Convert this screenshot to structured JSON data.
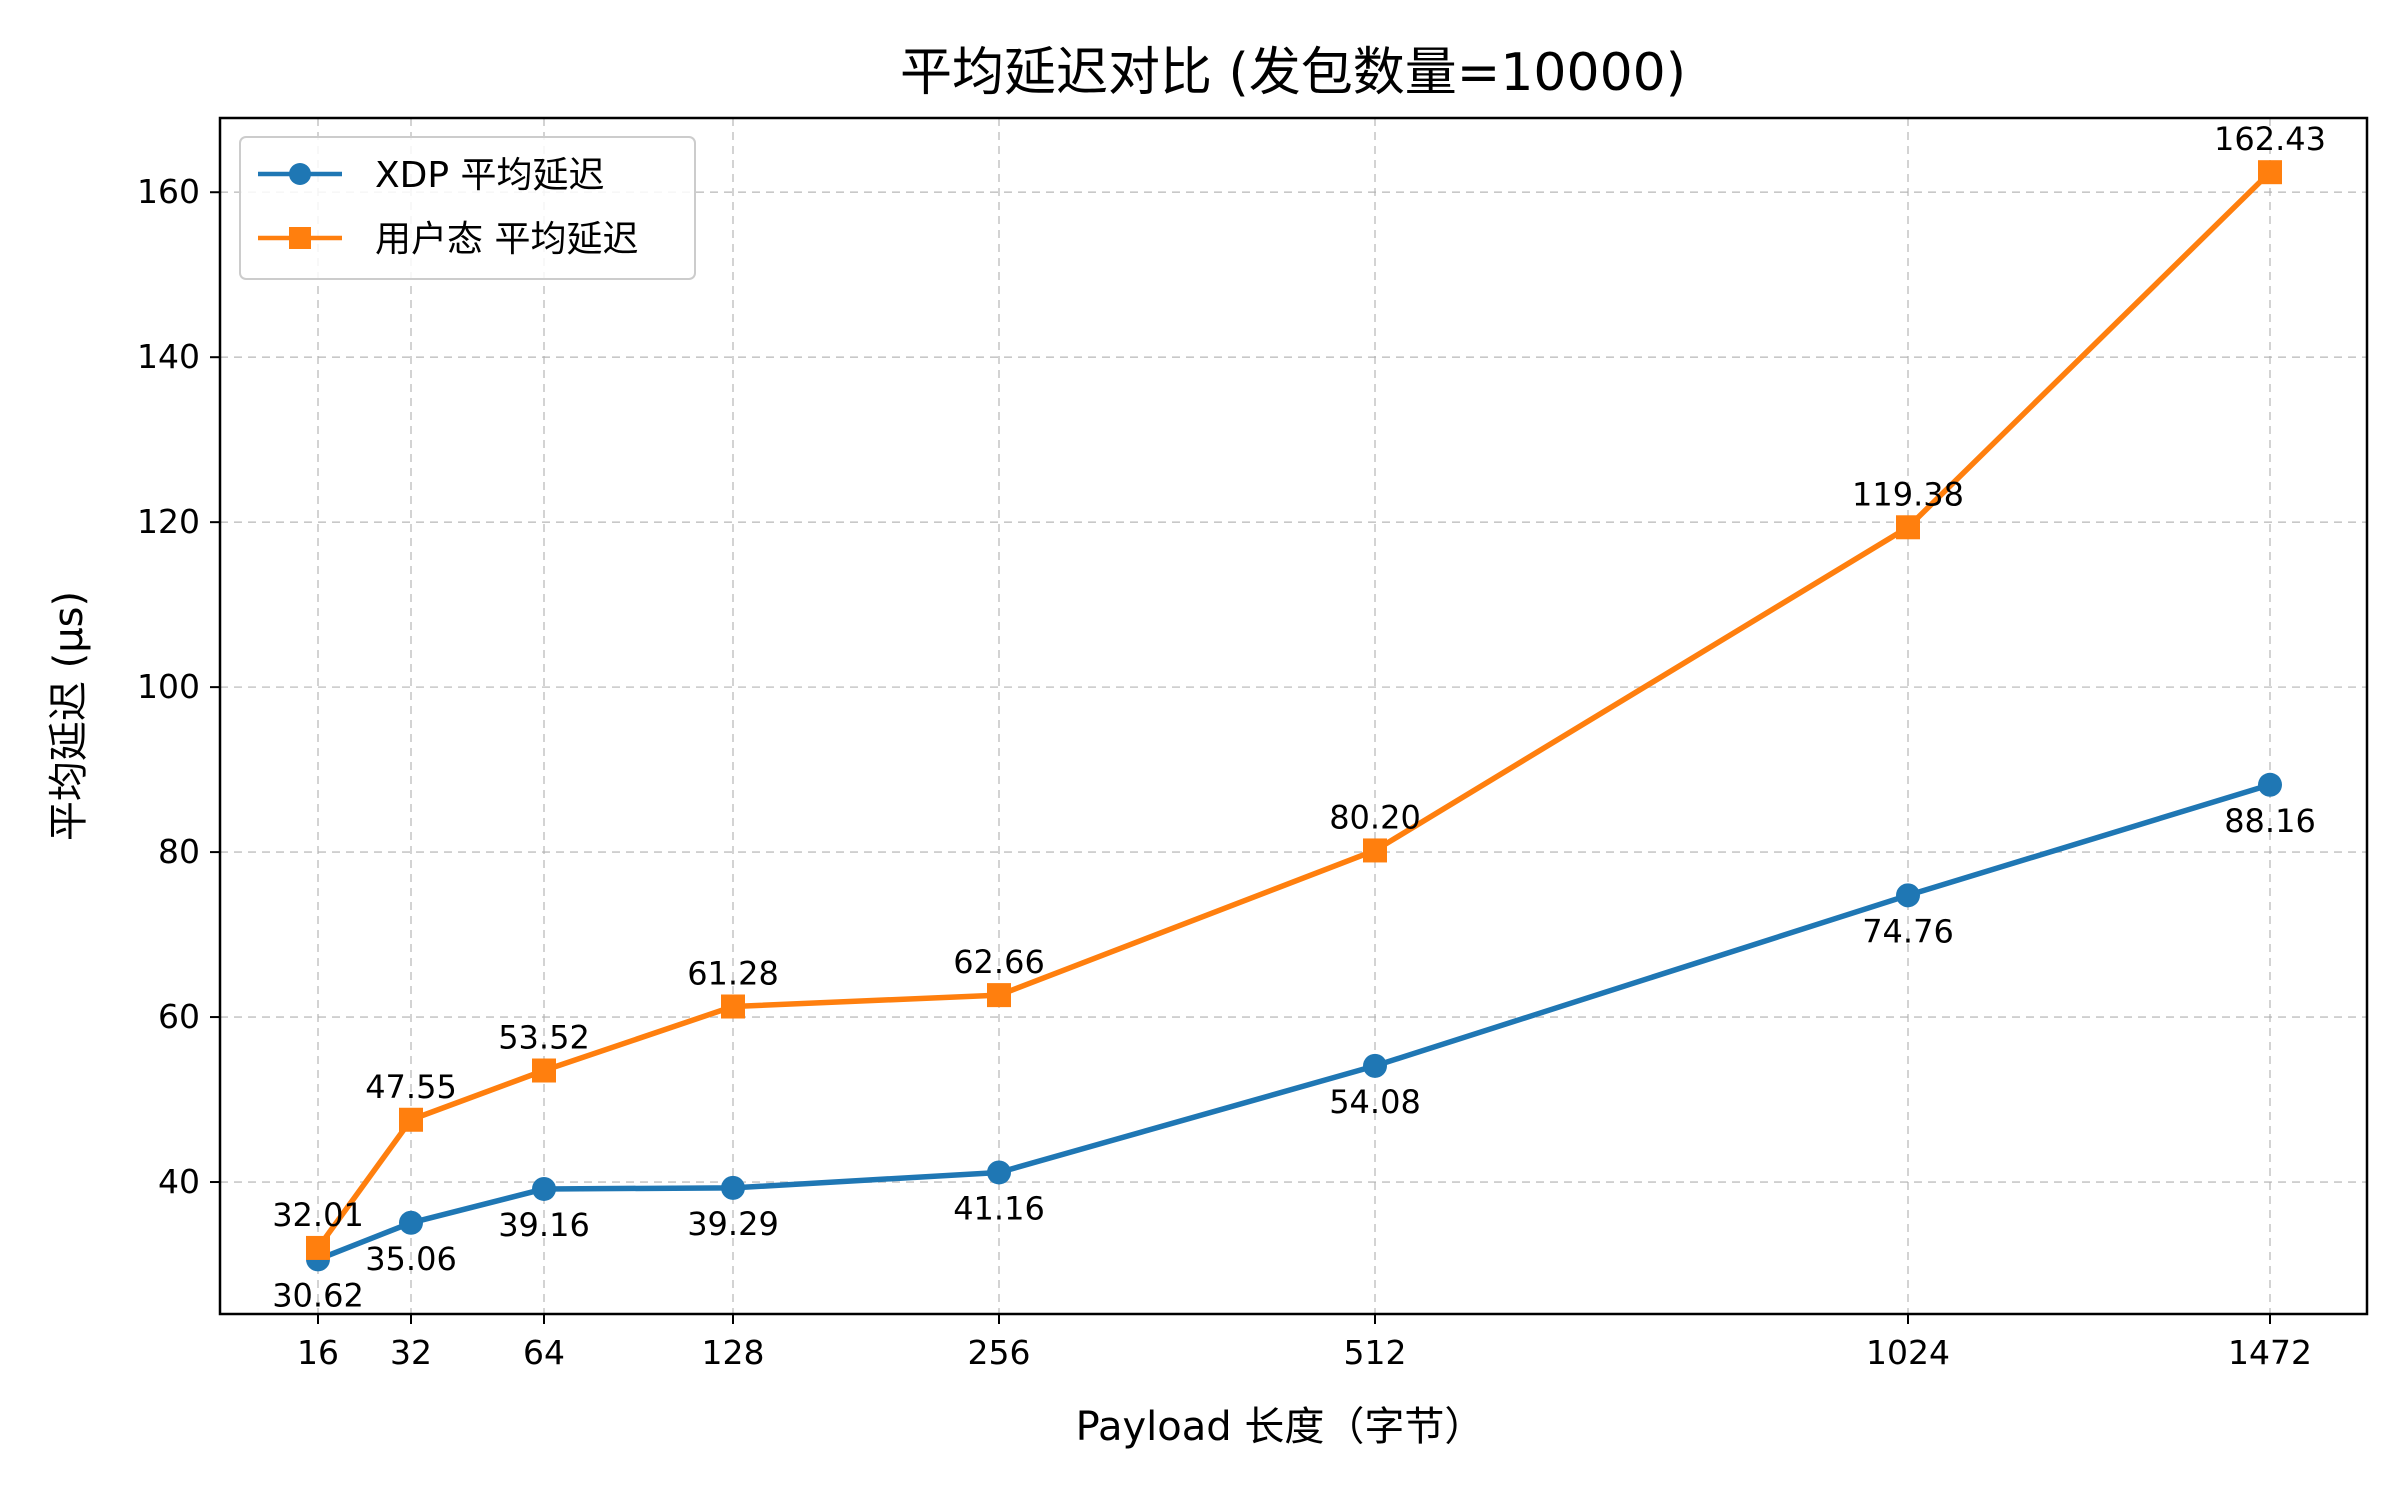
{
  "chart_data": {
    "type": "line",
    "title": "平均延迟对比 (发包数量=10000)",
    "xlabel": "Payload 长度（字节）",
    "ylabel": "平均延迟 (μs)",
    "x": [
      16,
      32,
      64,
      128,
      256,
      512,
      1024,
      1472
    ],
    "x_tick_labels": [
      "16",
      "32",
      "64",
      "128",
      "256",
      "512",
      "1024",
      "1472"
    ],
    "y_ticks": [
      40,
      60,
      80,
      100,
      120,
      140,
      160
    ],
    "ylim": [
      24.0,
      169.0
    ],
    "grid": true,
    "legend_position": "upper-left",
    "series": [
      {
        "name": "XDP 平均延迟",
        "color": "#1f77b4",
        "marker": "circle",
        "values": [
          30.62,
          35.06,
          39.16,
          39.29,
          41.16,
          54.08,
          74.76,
          88.16
        ],
        "labels": [
          "30.62",
          "35.06",
          "39.16",
          "39.29",
          "41.16",
          "54.08",
          "74.76",
          "88.16"
        ]
      },
      {
        "name": "用户态 平均延迟",
        "color": "#ff7f0e",
        "marker": "square",
        "values": [
          32.01,
          47.55,
          53.52,
          61.28,
          62.66,
          80.2,
          119.38,
          162.43
        ],
        "labels": [
          "32.01",
          "47.55",
          "53.52",
          "61.28",
          "62.66",
          "80.20",
          "119.38",
          "162.43"
        ]
      }
    ]
  }
}
